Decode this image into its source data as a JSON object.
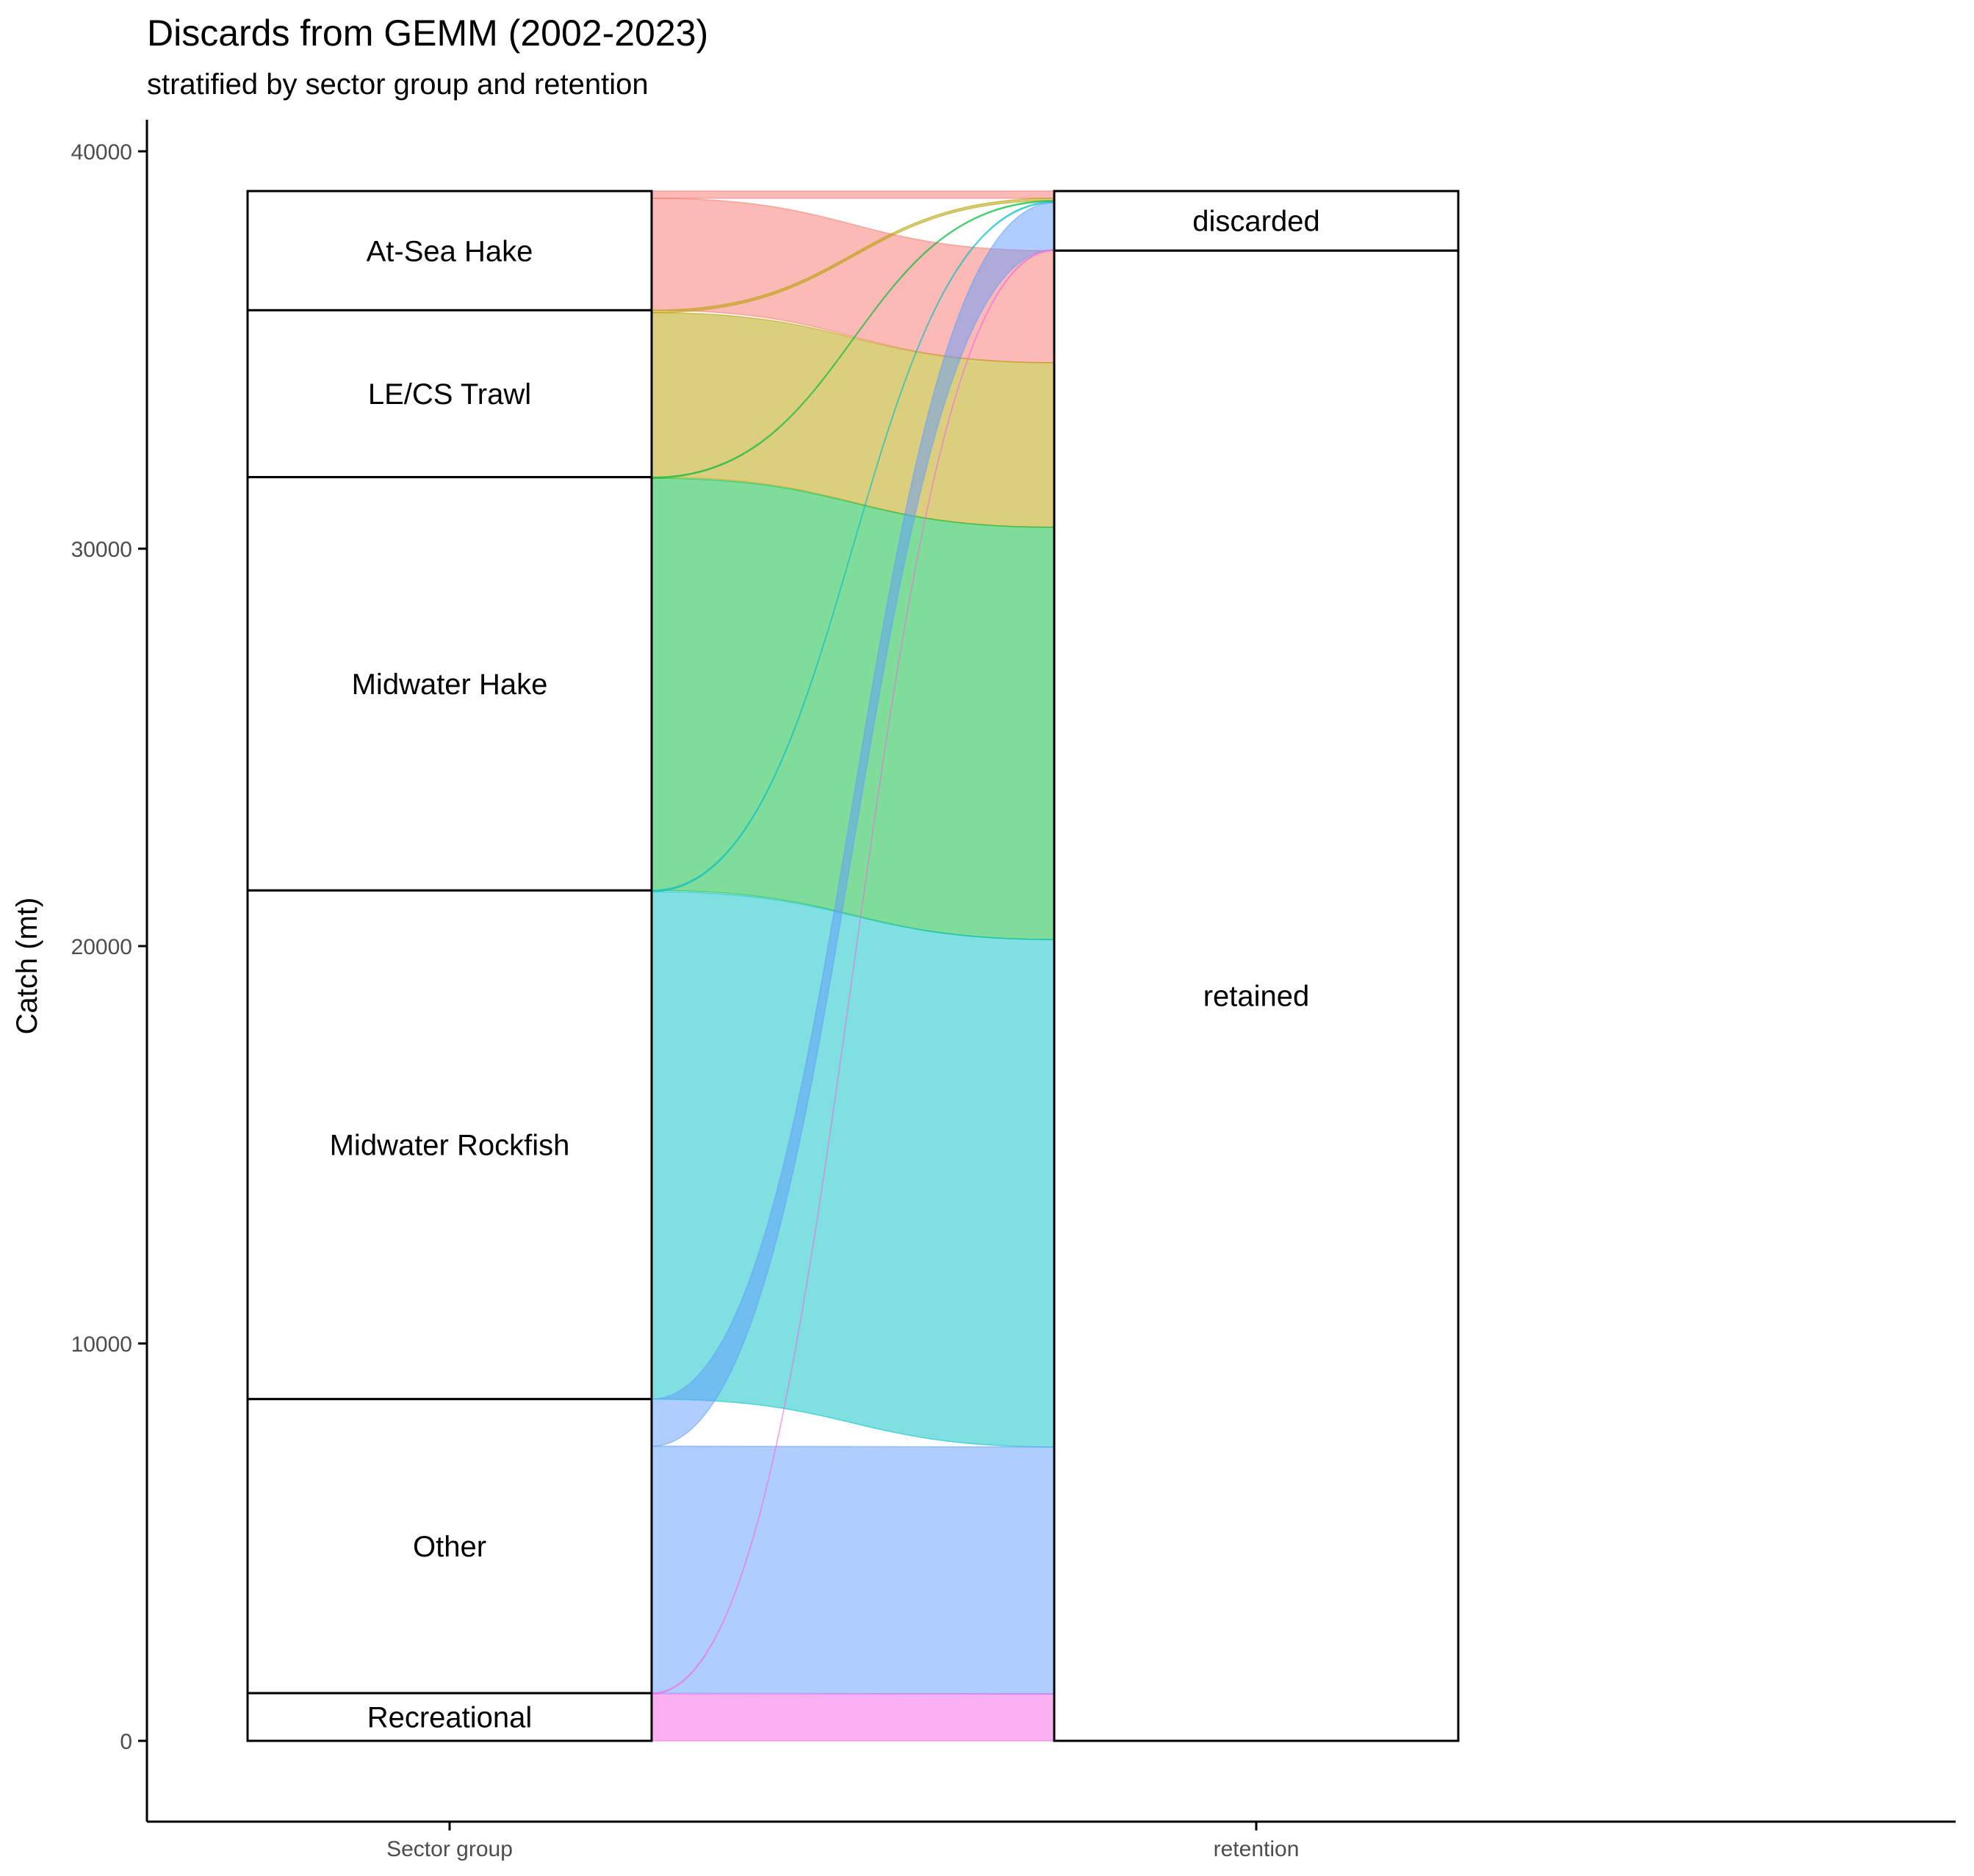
{
  "chart_data": {
    "type": "alluvial",
    "title": "Discards from GEMM (2002-2023)",
    "subtitle": "stratified by sector group and retention",
    "ylabel": "Catch (mt)",
    "xlabel": "",
    "ylim": [
      -2000,
      41000
    ],
    "yticks": [
      0,
      10000,
      20000,
      30000,
      40000
    ],
    "axes": [
      "Sector group",
      "retention"
    ],
    "grid": false,
    "legend": "none",
    "strata": {
      "Sector group": [
        "At-Sea Hake",
        "LE/CS Trawl",
        "Midwater Hake",
        "Midwater Rockfish",
        "Other",
        "Recreational"
      ],
      "retention": [
        "discarded",
        "retained"
      ]
    },
    "sector_totals": [
      {
        "name": "At-Sea Hake",
        "value": 3000
      },
      {
        "name": "LE/CS Trawl",
        "value": 4200
      },
      {
        "name": "Midwater Hake",
        "value": 10400
      },
      {
        "name": "Midwater Rockfish",
        "value": 12800
      },
      {
        "name": "Other",
        "value": 7400
      },
      {
        "name": "Recreational",
        "value": 1200
      }
    ],
    "flows": [
      {
        "from": "At-Sea Hake",
        "to": "discarded",
        "value": 180,
        "color": "#F8766D"
      },
      {
        "from": "At-Sea Hake",
        "to": "retained",
        "value": 2820,
        "color": "#F8766D"
      },
      {
        "from": "LE/CS Trawl",
        "to": "discarded",
        "value": 60,
        "color": "#B79F00"
      },
      {
        "from": "LE/CS Trawl",
        "to": "retained",
        "value": 4140,
        "color": "#B79F00"
      },
      {
        "from": "Midwater Hake",
        "to": "discarded",
        "value": 25,
        "color": "#00BA38"
      },
      {
        "from": "Midwater Hake",
        "to": "retained",
        "value": 10375,
        "color": "#00BA38"
      },
      {
        "from": "Midwater Rockfish",
        "to": "discarded",
        "value": 30,
        "color": "#00BFC4"
      },
      {
        "from": "Midwater Rockfish",
        "to": "retained",
        "value": 12770,
        "color": "#00BFC4"
      },
      {
        "from": "Other",
        "to": "discarded",
        "value": 1185,
        "color": "#619CFF"
      },
      {
        "from": "Other",
        "to": "retained",
        "value": 6215,
        "color": "#619CFF"
      },
      {
        "from": "Recreational",
        "to": "discarded",
        "value": 20,
        "color": "#F564E3"
      },
      {
        "from": "Recreational",
        "to": "retained",
        "value": 1180,
        "color": "#F564E3"
      }
    ]
  }
}
